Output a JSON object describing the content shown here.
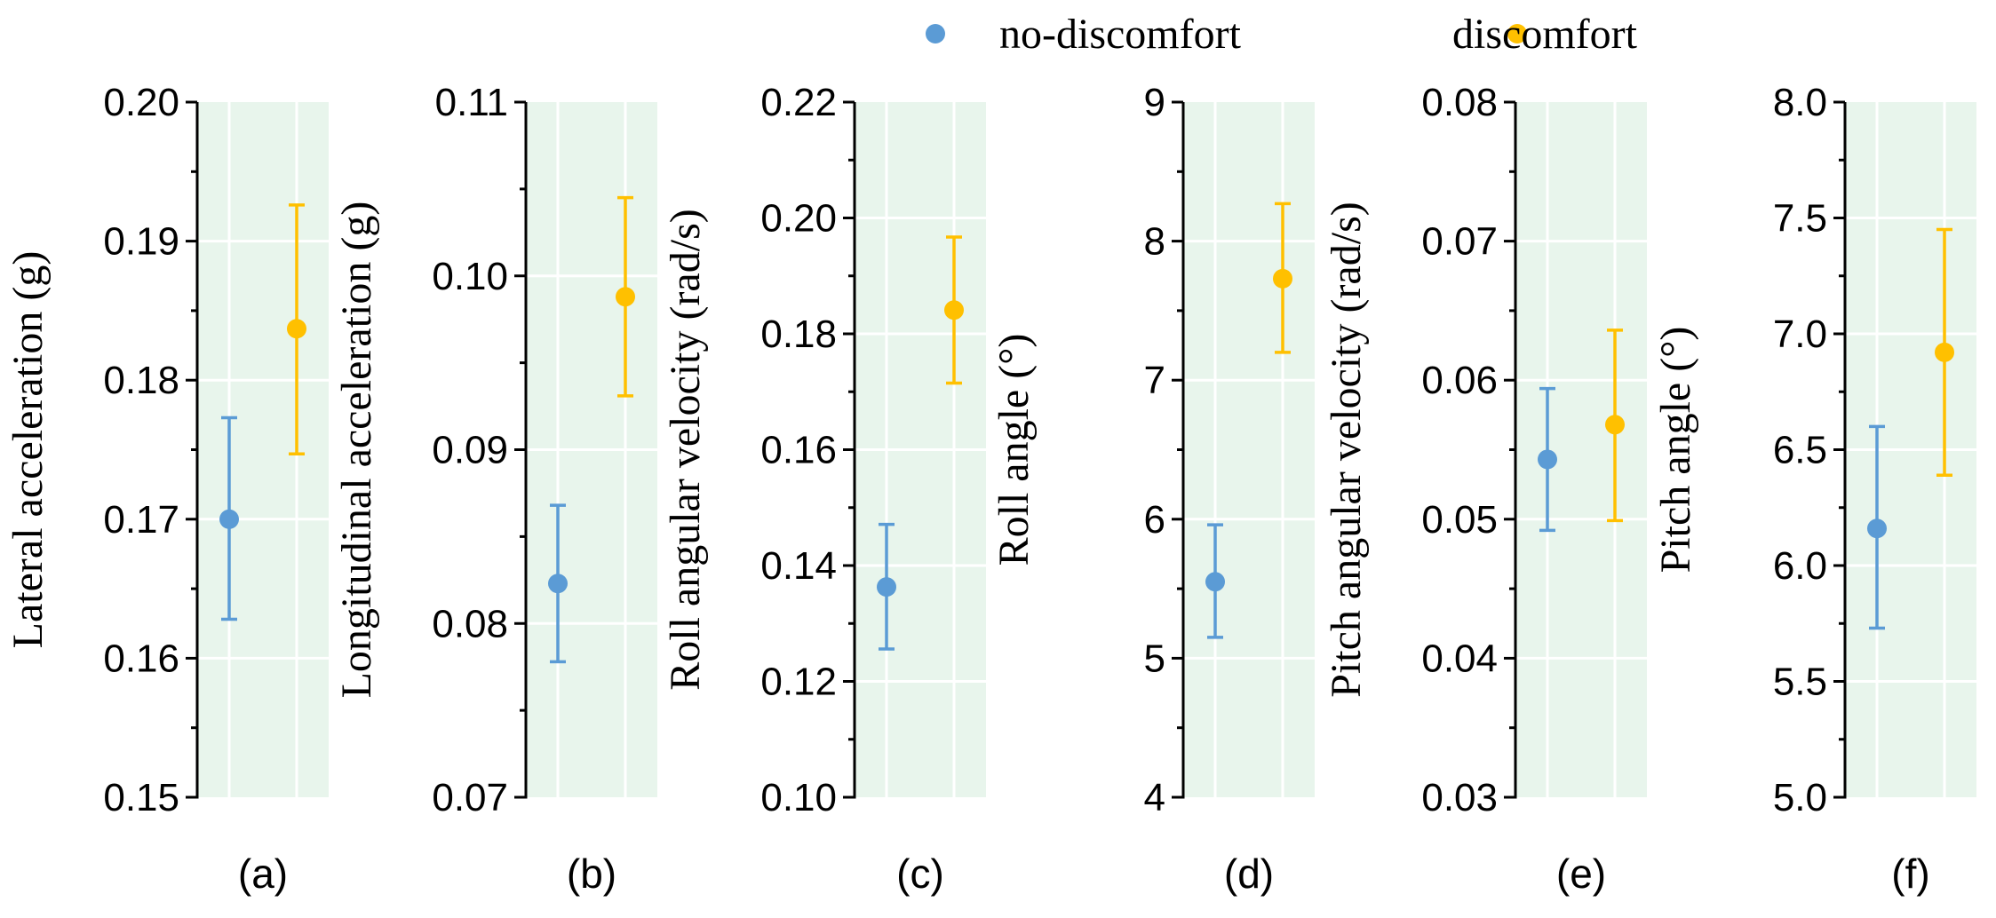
{
  "legend": {
    "items": [
      {
        "name": "no-discomfort",
        "color": "#5B9BD5"
      },
      {
        "name": "discomfort",
        "color": "#FFC000"
      }
    ]
  },
  "style": {
    "panel_background": "#E8F5EC",
    "grid_color": "#FFFFFF",
    "axis_color": "#000000"
  },
  "chart_data": [
    {
      "type": "scatter",
      "panel": "(a)",
      "ylabel": "Lateral acceleration (g)",
      "ylim": [
        0.15,
        0.2
      ],
      "ticks": [
        "0.15",
        "0.16",
        "0.17",
        "0.18",
        "0.19",
        "0.20"
      ],
      "series": [
        {
          "name": "no-discomfort",
          "mean": 0.17,
          "lower": 0.1628,
          "upper": 0.1773
        },
        {
          "name": "discomfort",
          "mean": 0.1837,
          "lower": 0.1747,
          "upper": 0.1926
        }
      ]
    },
    {
      "type": "scatter",
      "panel": "(b)",
      "ylabel": "Longitudinal acceleration (g)",
      "ylim": [
        0.07,
        0.11
      ],
      "ticks": [
        "0.07",
        "0.08",
        "0.09",
        "0.10",
        "0.11"
      ],
      "series": [
        {
          "name": "no-discomfort",
          "mean": 0.0823,
          "lower": 0.0778,
          "upper": 0.0868
        },
        {
          "name": "discomfort",
          "mean": 0.0988,
          "lower": 0.0931,
          "upper": 0.1045
        }
      ]
    },
    {
      "type": "scatter",
      "panel": "(c)",
      "ylabel": "Roll angular velocity (rad/s)",
      "ylim": [
        0.1,
        0.22
      ],
      "ticks": [
        "0.10",
        "0.12",
        "0.14",
        "0.16",
        "0.18",
        "0.20",
        "0.22"
      ],
      "series": [
        {
          "name": "no-discomfort",
          "mean": 0.1363,
          "lower": 0.1256,
          "upper": 0.1471
        },
        {
          "name": "discomfort",
          "mean": 0.1841,
          "lower": 0.1715,
          "upper": 0.1967
        }
      ]
    },
    {
      "type": "scatter",
      "panel": "(d)",
      "ylabel": "Roll angle (°)",
      "ylim": [
        4,
        9
      ],
      "ticks": [
        "4",
        "5",
        "6",
        "7",
        "8",
        "9"
      ],
      "series": [
        {
          "name": "no-discomfort",
          "mean": 5.55,
          "lower": 5.15,
          "upper": 5.96
        },
        {
          "name": "discomfort",
          "mean": 7.73,
          "lower": 7.2,
          "upper": 8.27
        }
      ]
    },
    {
      "type": "scatter",
      "panel": "(e)",
      "ylabel": "Pitch angular velocity (rad/s)",
      "ylim": [
        0.03,
        0.08
      ],
      "ticks": [
        "0.03",
        "0.04",
        "0.05",
        "0.06",
        "0.07",
        "0.08"
      ],
      "series": [
        {
          "name": "no-discomfort",
          "mean": 0.0543,
          "lower": 0.0492,
          "upper": 0.0594
        },
        {
          "name": "discomfort",
          "mean": 0.0568,
          "lower": 0.0499,
          "upper": 0.0636
        }
      ]
    },
    {
      "type": "scatter",
      "panel": "(f)",
      "ylabel": "Pitch angle (°)",
      "ylim": [
        5.0,
        8.0
      ],
      "ticks": [
        "5.0",
        "5.5",
        "6.0",
        "6.5",
        "7.0",
        "7.5",
        "8.0"
      ],
      "series": [
        {
          "name": "no-discomfort",
          "mean": 6.16,
          "lower": 5.73,
          "upper": 6.6
        },
        {
          "name": "discomfort",
          "mean": 6.92,
          "lower": 6.39,
          "upper": 7.45
        }
      ]
    }
  ]
}
